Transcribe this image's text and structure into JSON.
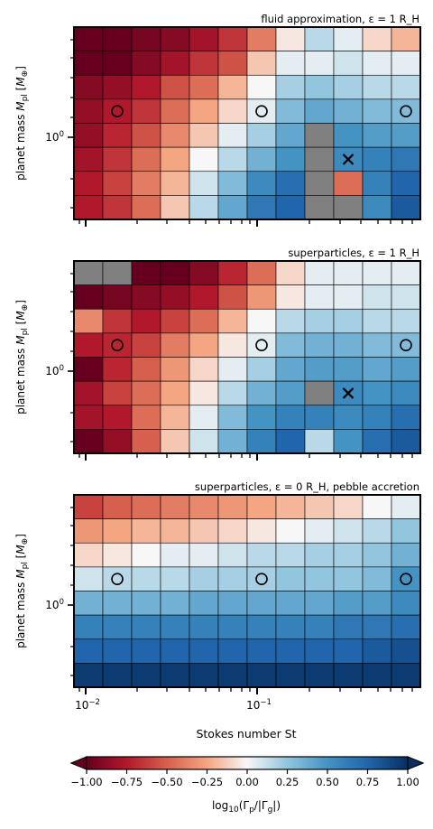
{
  "figure": {
    "xlabel": "Stokes number St",
    "ylabel": "planet mass M_pl [M_⊕]",
    "x_tick_labels": [
      "10^-2",
      "10^-1"
    ],
    "y_tick_label": "10^0",
    "colorbar": {
      "label": "log10(Γp/|Γg|)",
      "ticks": [
        "−1.00",
        "−0.75",
        "−0.50",
        "−0.25",
        "0.00",
        "0.25",
        "0.50",
        "0.75",
        "1.00"
      ],
      "vmin": -1.0,
      "vmax": 1.0,
      "colormap": "RdBu",
      "extend": "both"
    },
    "colors": {
      "masked_cell": "#808080",
      "marker": "#000000",
      "grid_line": "#000000"
    }
  },
  "chart_data": [
    {
      "type": "heatmap",
      "title": "fluid approximation, ε = 1 R_H",
      "x_scale": "log",
      "y_scale": "log",
      "columns": 12,
      "rows": 8,
      "row_order": "top-to-bottom (highest mass first)",
      "values": [
        [
          -1.0,
          -1.0,
          -0.95,
          -0.9,
          -0.8,
          -0.65,
          -0.4,
          -0.05,
          0.15,
          0.05,
          -0.1,
          -0.2
        ],
        [
          -1.0,
          -1.0,
          -0.9,
          -0.8,
          -0.65,
          -0.55,
          -0.15,
          0.05,
          0.05,
          0.1,
          0.05,
          0.05
        ],
        [
          -0.9,
          -0.85,
          -0.75,
          -0.55,
          -0.45,
          -0.2,
          0.0,
          0.2,
          0.25,
          0.2,
          0.15,
          0.15
        ],
        [
          -0.85,
          -0.75,
          -0.65,
          -0.45,
          -0.25,
          -0.1,
          0.05,
          0.3,
          0.4,
          0.35,
          0.3,
          0.3
        ],
        [
          -0.85,
          -0.7,
          -0.55,
          -0.35,
          -0.15,
          0.05,
          0.2,
          0.4,
          null,
          0.5,
          0.45,
          0.45
        ],
        [
          -0.8,
          -0.65,
          -0.45,
          -0.25,
          0.0,
          0.15,
          0.35,
          0.5,
          null,
          0.55,
          0.6,
          0.65
        ],
        [
          -0.75,
          -0.6,
          -0.4,
          -0.2,
          0.1,
          0.3,
          0.55,
          0.7,
          null,
          -0.45,
          0.6,
          0.75
        ],
        [
          -0.75,
          -0.65,
          -0.45,
          -0.15,
          0.15,
          0.4,
          0.65,
          0.75,
          null,
          null,
          0.55,
          0.8
        ]
      ],
      "circles": [
        {
          "col": 1,
          "row": 3
        },
        {
          "col": 6,
          "row": 3
        },
        {
          "col": 11,
          "row": 3
        }
      ],
      "crosses": [
        {
          "col": 9,
          "row": 5
        }
      ]
    },
    {
      "type": "heatmap",
      "title": "superparticles, ε = 1 R_H",
      "x_scale": "log",
      "y_scale": "log",
      "columns": 12,
      "rows": 8,
      "row_order": "top-to-bottom (highest mass first)",
      "values": [
        [
          null,
          null,
          -1.0,
          -1.0,
          -0.9,
          -0.7,
          -0.45,
          -0.1,
          0.05,
          0.05,
          0.05,
          0.05
        ],
        [
          -1.0,
          -0.95,
          -0.9,
          -0.85,
          -0.75,
          -0.55,
          -0.3,
          -0.05,
          0.05,
          0.05,
          0.1,
          0.1
        ],
        [
          -0.35,
          -0.65,
          -0.75,
          -0.6,
          -0.45,
          -0.2,
          0.0,
          0.15,
          0.2,
          0.2,
          0.15,
          0.15
        ],
        [
          -0.75,
          -0.7,
          -0.6,
          -0.4,
          -0.25,
          -0.05,
          0.05,
          0.3,
          0.35,
          0.35,
          0.3,
          0.3
        ],
        [
          -1.0,
          -0.7,
          -0.5,
          -0.3,
          -0.1,
          0.05,
          0.2,
          0.4,
          0.45,
          0.45,
          0.4,
          0.45
        ],
        [
          -0.8,
          -0.6,
          -0.45,
          -0.25,
          -0.05,
          0.15,
          0.35,
          0.45,
          null,
          0.55,
          0.5,
          0.55
        ],
        [
          -0.8,
          -0.75,
          -0.45,
          -0.2,
          0.05,
          0.3,
          0.5,
          0.6,
          0.6,
          0.55,
          0.6,
          0.7
        ],
        [
          -1.0,
          -0.85,
          -0.5,
          -0.15,
          0.1,
          0.35,
          0.6,
          0.75,
          0.15,
          0.5,
          0.7,
          0.8
        ]
      ],
      "circles": [
        {
          "col": 1,
          "row": 3
        },
        {
          "col": 6,
          "row": 3
        },
        {
          "col": 11,
          "row": 3
        }
      ],
      "crosses": [
        {
          "col": 9,
          "row": 5
        }
      ]
    },
    {
      "type": "heatmap",
      "title": "superparticles, ε = 0 R_H, pebble accretion",
      "x_scale": "log",
      "y_scale": "log",
      "columns": 12,
      "rows": 8,
      "row_order": "top-to-bottom (highest mass first)",
      "values": [
        [
          -0.6,
          -0.5,
          -0.45,
          -0.4,
          -0.35,
          -0.3,
          -0.25,
          -0.2,
          -0.15,
          -0.1,
          0.0,
          0.05
        ],
        [
          -0.3,
          -0.25,
          -0.2,
          -0.2,
          -0.15,
          -0.1,
          -0.05,
          0.0,
          0.05,
          0.1,
          0.15,
          0.25
        ],
        [
          -0.1,
          -0.05,
          0.0,
          0.05,
          0.05,
          0.1,
          0.15,
          0.15,
          0.2,
          0.2,
          0.25,
          0.35
        ],
        [
          0.1,
          0.15,
          0.15,
          0.15,
          0.2,
          0.2,
          0.2,
          0.25,
          0.25,
          0.25,
          0.3,
          0.5
        ],
        [
          0.35,
          0.35,
          0.35,
          0.35,
          0.4,
          0.4,
          0.4,
          0.4,
          0.4,
          0.45,
          0.45,
          0.55
        ],
        [
          0.6,
          0.6,
          0.6,
          0.6,
          0.6,
          0.6,
          0.6,
          0.6,
          0.6,
          0.65,
          0.65,
          0.7
        ],
        [
          0.75,
          0.75,
          0.75,
          0.75,
          0.75,
          0.75,
          0.75,
          0.75,
          0.75,
          0.75,
          0.8,
          0.85
        ],
        [
          0.95,
          0.95,
          0.95,
          0.95,
          0.95,
          0.95,
          0.95,
          0.95,
          0.95,
          0.95,
          0.95,
          0.95
        ]
      ],
      "circles": [
        {
          "col": 1,
          "row": 3
        },
        {
          "col": 6,
          "row": 3
        },
        {
          "col": 11,
          "row": 3
        }
      ],
      "crosses": []
    }
  ]
}
